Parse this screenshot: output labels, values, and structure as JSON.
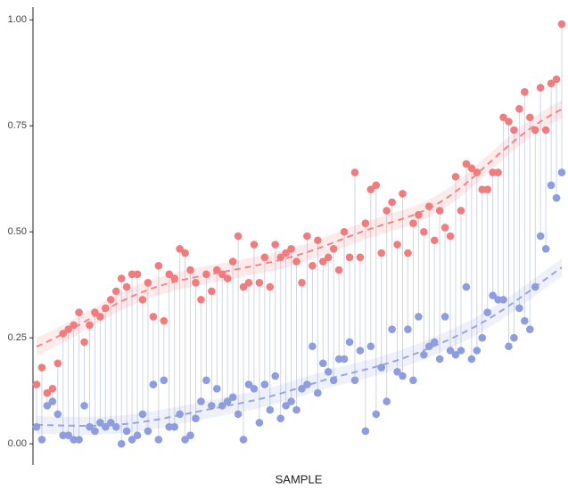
{
  "chart_data": {
    "type": "dumbbell",
    "x_label": "SAMPLE",
    "ylim": [
      -0.05,
      1.03
    ],
    "yticks": [
      {
        "value": 0,
        "label": "0.00"
      },
      {
        "value": 0.25,
        "label": "0.25"
      },
      {
        "value": 0.5,
        "label": "0.50"
      },
      {
        "value": 0.75,
        "label": "0.75"
      },
      {
        "value": 1,
        "label": "1.00"
      }
    ],
    "series": [
      {
        "color": "#f07c7e",
        "values": [
          0.14,
          0.18,
          0.12,
          0.13,
          0.19,
          0.26,
          0.27,
          0.28,
          0.31,
          0.24,
          0.28,
          0.31,
          0.3,
          0.32,
          0.34,
          0.36,
          0.39,
          0.37,
          0.4,
          0.4,
          0.34,
          0.38,
          0.3,
          0.42,
          0.29,
          0.4,
          0.39,
          0.46,
          0.45,
          0.41,
          0.38,
          0.34,
          0.4,
          0.36,
          0.41,
          0.4,
          0.39,
          0.43,
          0.49,
          0.37,
          0.38,
          0.47,
          0.38,
          0.44,
          0.37,
          0.47,
          0.44,
          0.45,
          0.46,
          0.43,
          0.38,
          0.49,
          0.42,
          0.48,
          0.43,
          0.44,
          0.46,
          0.41,
          0.5,
          0.44,
          0.64,
          0.44,
          0.52,
          0.6,
          0.61,
          0.45,
          0.55,
          0.57,
          0.47,
          0.59,
          0.45,
          0.52,
          0.54,
          0.5,
          0.56,
          0.48,
          0.55,
          0.51,
          0.49,
          0.63,
          0.55,
          0.66,
          0.65,
          0.64,
          0.6,
          0.6,
          0.64,
          0.64,
          0.77,
          0.76,
          0.74,
          0.79,
          0.83,
          0.77,
          0.74,
          0.84,
          0.74,
          0.85,
          0.86,
          0.99
        ]
      },
      {
        "color": "#8e9de0",
        "values": [
          0.04,
          0.01,
          0.09,
          0.1,
          0.07,
          0.02,
          0.02,
          0.01,
          0.01,
          0.09,
          0.04,
          0.03,
          0.05,
          0.04,
          0.05,
          0.04,
          0.0,
          0.03,
          0.01,
          0.02,
          0.07,
          0.03,
          0.14,
          0.01,
          0.15,
          0.04,
          0.04,
          0.07,
          0.01,
          0.02,
          0.06,
          0.1,
          0.15,
          0.09,
          0.13,
          0.09,
          0.1,
          0.11,
          0.07,
          0.01,
          0.14,
          0.13,
          0.05,
          0.14,
          0.08,
          0.16,
          0.06,
          0.09,
          0.1,
          0.08,
          0.13,
          0.14,
          0.23,
          0.12,
          0.19,
          0.17,
          0.15,
          0.2,
          0.2,
          0.24,
          0.15,
          0.22,
          0.03,
          0.23,
          0.07,
          0.18,
          0.1,
          0.27,
          0.17,
          0.16,
          0.27,
          0.15,
          0.3,
          0.21,
          0.23,
          0.24,
          0.2,
          0.3,
          0.22,
          0.21,
          0.22,
          0.37,
          0.2,
          0.22,
          0.25,
          0.31,
          0.35,
          0.34,
          0.34,
          0.23,
          0.25,
          0.32,
          0.29,
          0.27,
          0.37,
          0.49,
          0.46,
          0.61,
          0.58,
          0.64
        ]
      }
    ]
  }
}
